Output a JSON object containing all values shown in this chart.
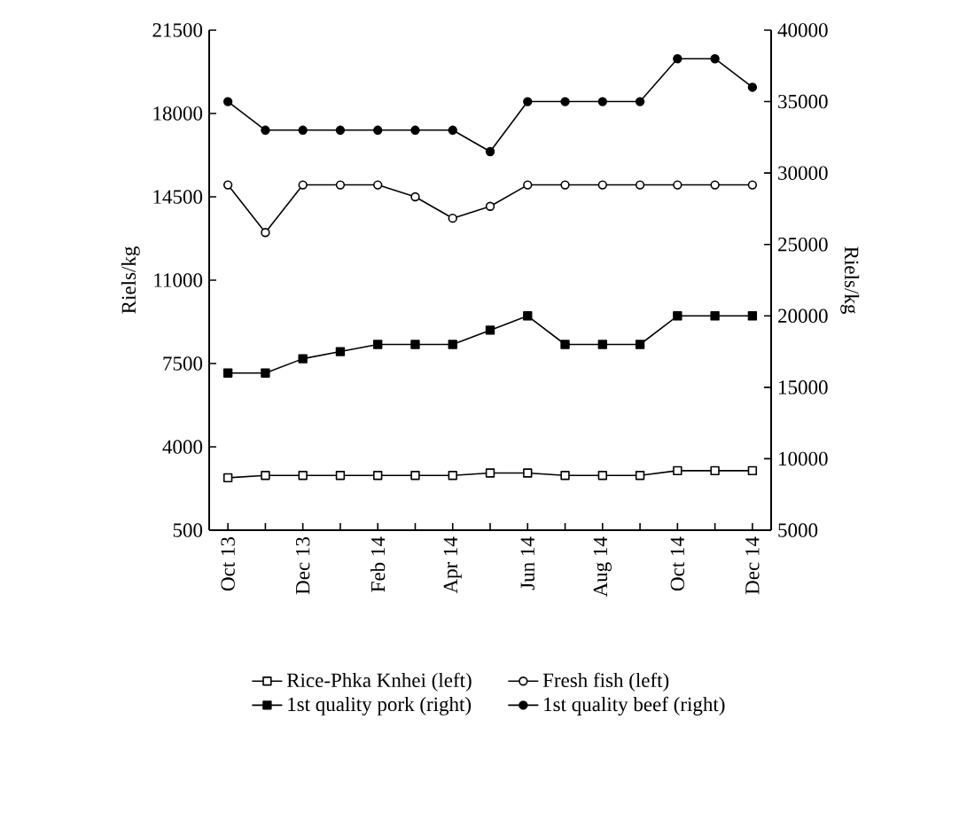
{
  "chart_data": {
    "type": "line",
    "ylabel": "Riels/kg",
    "y2label": "Riels/kg",
    "categories": [
      "Oct 13",
      null,
      "Dec 13",
      null,
      "Feb 14",
      null,
      "Apr 14",
      null,
      "Jun 14",
      null,
      "Aug 14",
      null,
      "Oct 14",
      null,
      "Dec 14"
    ],
    "ylim": [
      500,
      21500
    ],
    "yticks": [
      500,
      4000,
      7500,
      11000,
      14500,
      18000,
      21500
    ],
    "y2lim": [
      5000,
      40000
    ],
    "y2ticks": [
      5000,
      10000,
      15000,
      20000,
      25000,
      30000,
      35000,
      40000
    ],
    "legend": "bottom",
    "grid": false,
    "series": [
      {
        "name": "Rice-Phka Knhei (left)",
        "color": "#000000",
        "marker": "square",
        "values": [
          2700,
          2800,
          2800,
          2800,
          2800,
          2800,
          2800,
          2900,
          2900,
          2800,
          2800,
          2800,
          3000,
          3000,
          3000
        ]
      },
      {
        "name": "Fresh fish (left)",
        "color": "#000000",
        "marker": "circle",
        "values": [
          15000,
          13000,
          15000,
          15000,
          15000,
          14500,
          13600,
          14100,
          15000,
          15000,
          15000,
          15000,
          15000,
          15000,
          15000
        ]
      },
      {
        "name": "1st quality pork (right)",
        "color": "#000000",
        "marker": "square",
        "axis": "y2",
        "values": [
          16000,
          16000,
          17000,
          17500,
          18000,
          18000,
          18000,
          19000,
          20000,
          18000,
          18000,
          18000,
          20000,
          20000,
          20000
        ]
      },
      {
        "name": "1st quality beef (right)",
        "color": "#000000",
        "marker": "circle",
        "axis": "y2",
        "values": [
          35000,
          33000,
          33000,
          33000,
          33000,
          33000,
          33000,
          31500,
          35000,
          35000,
          35000,
          35000,
          38000,
          38000,
          36000
        ]
      }
    ]
  }
}
